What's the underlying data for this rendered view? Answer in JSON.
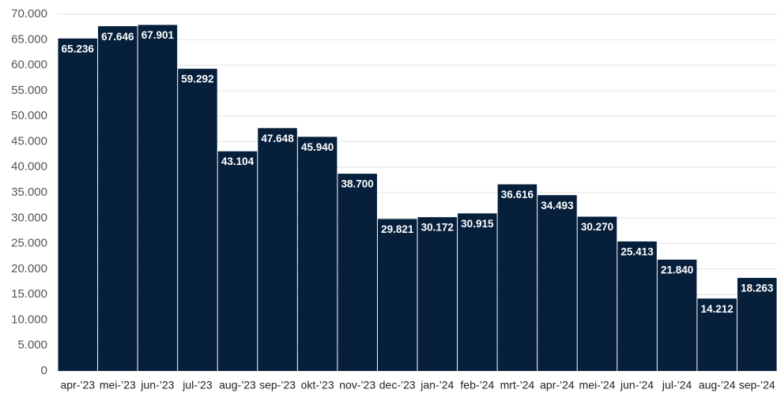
{
  "chart_data": {
    "type": "bar",
    "categories": [
      "apr-’23",
      "mei-’23",
      "jun-’23",
      "jul-’23",
      "aug-’23",
      "sep-’23",
      "okt-’23",
      "nov-’23",
      "dec-’23",
      "jan-’24",
      "feb-’24",
      "mrt-’24",
      "apr-’24",
      "mei-’24",
      "jun-’24",
      "jul-’24",
      "aug-’24",
      "sep-’24"
    ],
    "values": [
      65236,
      67646,
      67901,
      59292,
      43104,
      47648,
      45940,
      38700,
      29821,
      30172,
      30915,
      36616,
      34493,
      30270,
      25413,
      21840,
      14212,
      18263
    ],
    "value_labels": [
      "65.236",
      "67.646",
      "67.901",
      "59.292",
      "43.104",
      "47.648",
      "45.940",
      "38.700",
      "29.821",
      "30.172",
      "30.915",
      "36.616",
      "34.493",
      "30.270",
      "25.413",
      "21.840",
      "14.212",
      "18.263"
    ],
    "color": "#061f3b",
    "ylim": [
      0,
      70000
    ],
    "yticks": [
      0,
      {
        "value": 5000,
        "label": "5.000"
      },
      {
        "value": 10000,
        "label": "10.000"
      },
      {
        "value": 15000,
        "label": "15.000"
      },
      {
        "value": 20000,
        "label": "20.000"
      },
      {
        "value": 25000,
        "label": "25.000"
      },
      {
        "value": 30000,
        "label": "30.000"
      },
      {
        "value": 35000,
        "label": "35.000"
      },
      {
        "value": 40000,
        "label": "40.000"
      },
      {
        "value": 45000,
        "label": "45.000"
      },
      {
        "value": 50000,
        "label": "50.000"
      },
      {
        "value": 55000,
        "label": "55.000"
      },
      {
        "value": 60000,
        "label": "60.000"
      },
      {
        "value": 65000,
        "label": "65.000"
      },
      {
        "value": 70000,
        "label": "70.000"
      }
    ],
    "grid": true
  }
}
